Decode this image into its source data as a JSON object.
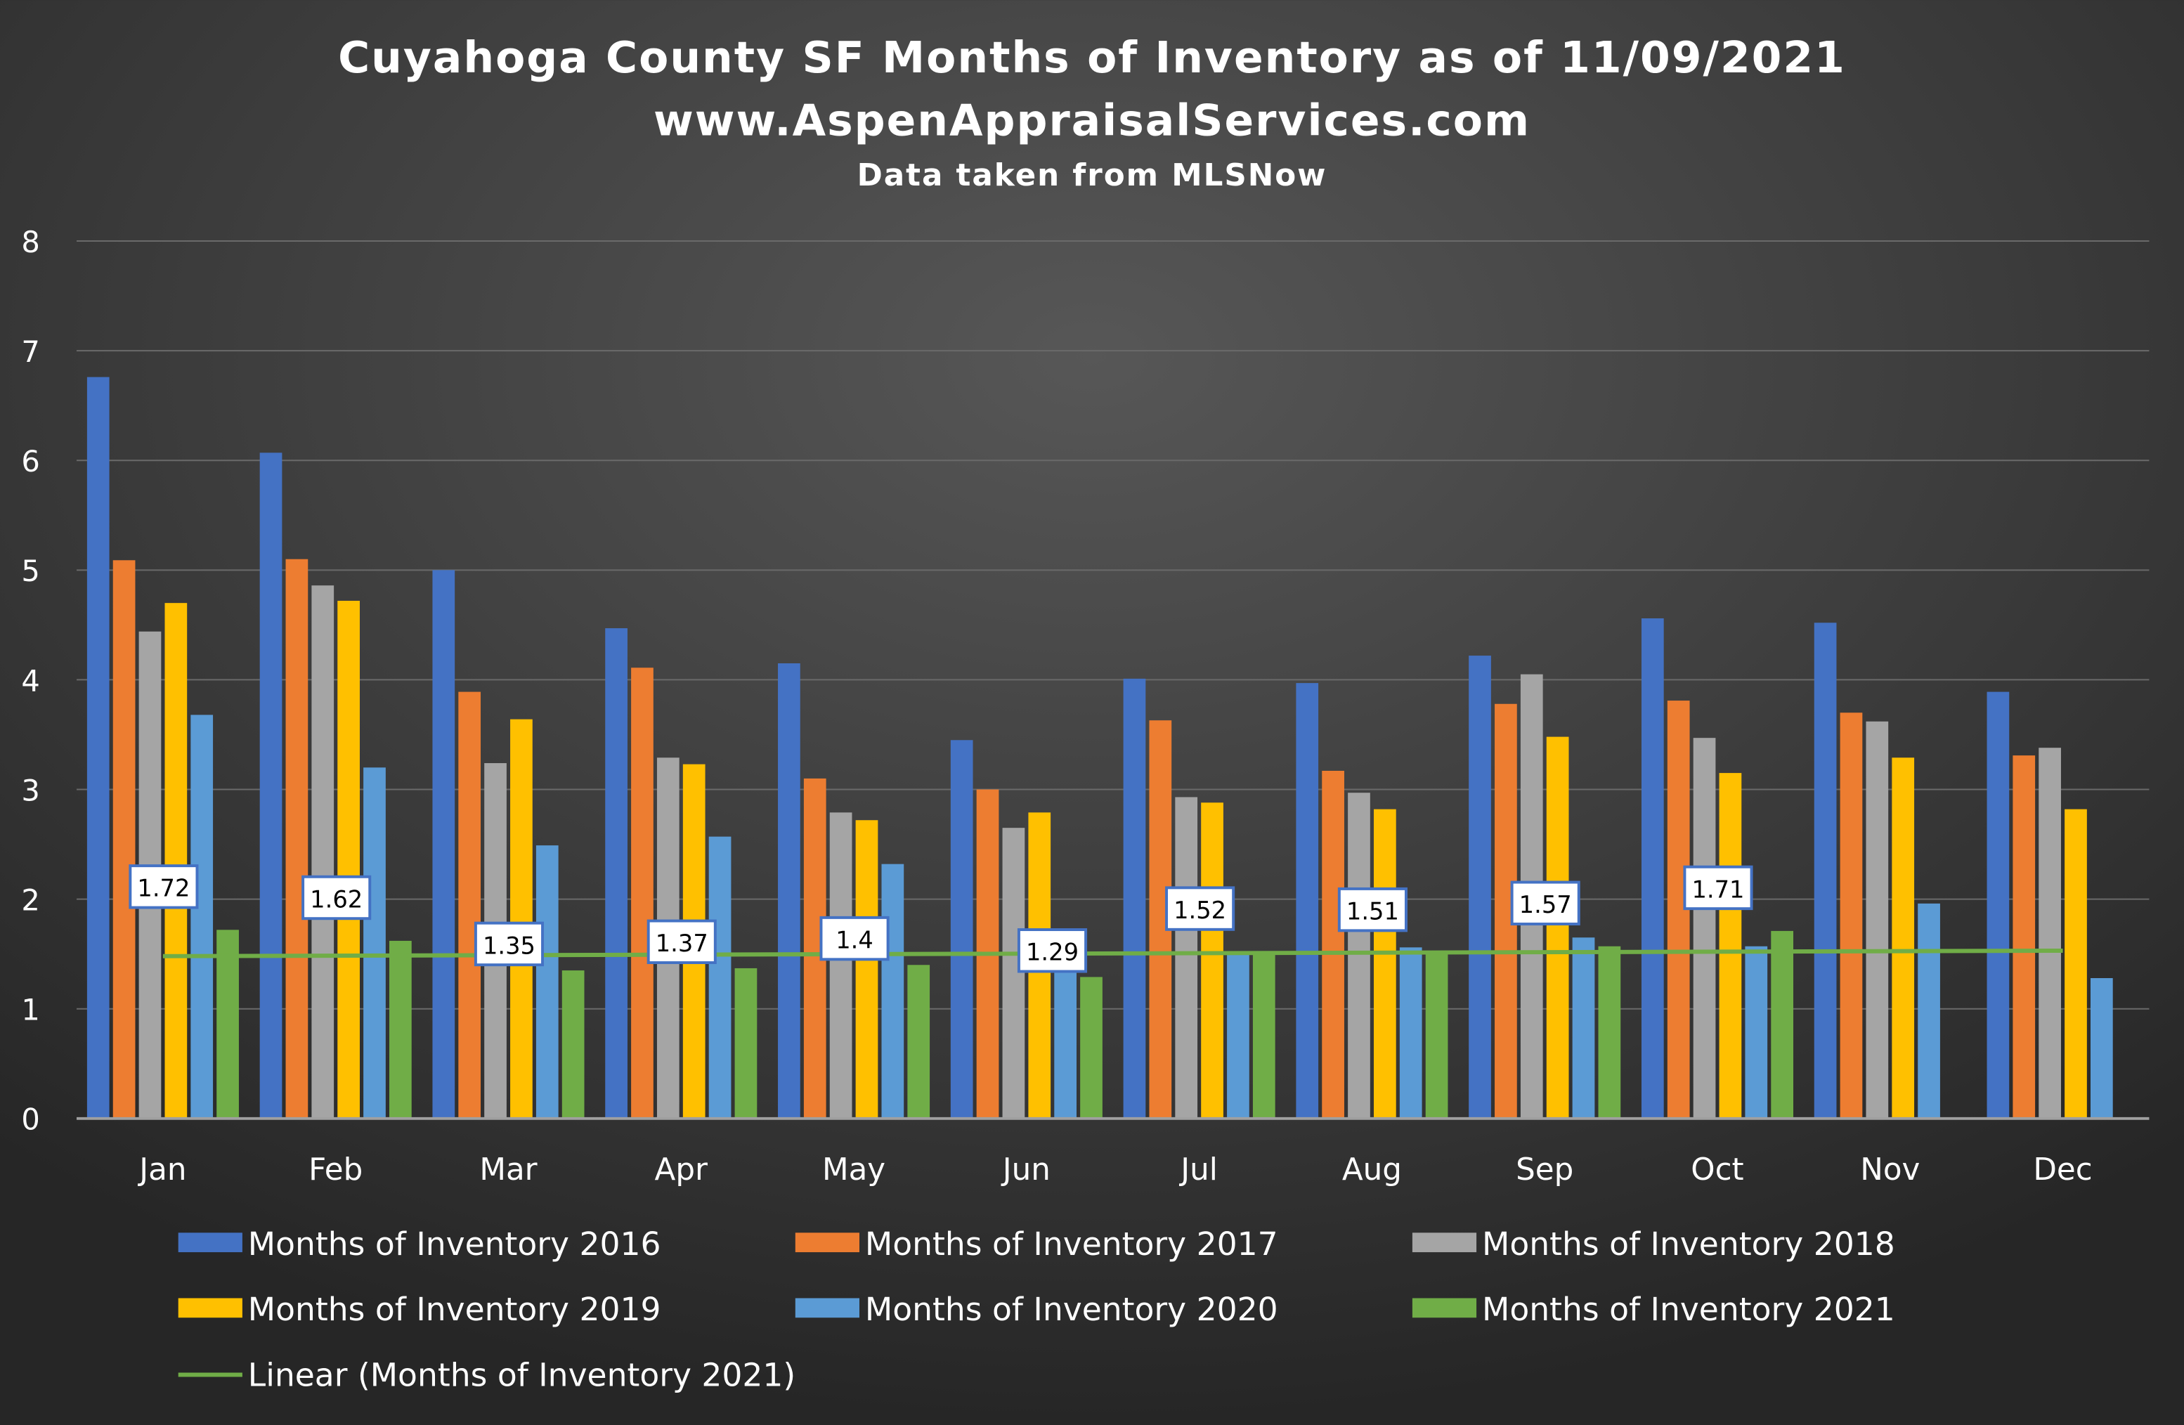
{
  "chart_data": {
    "type": "bar",
    "title": "Cuyahoga County SF Months of Inventory as of 11/09/2021",
    "subtitle": "www.AspenAppraisalServices.com",
    "subtitle2": "Data taken from MLSNow",
    "xlabel": "",
    "ylabel": "",
    "ylim": [
      0,
      8
    ],
    "yticks": [
      "0",
      "1",
      "2",
      "3",
      "4",
      "5",
      "6",
      "7",
      "8"
    ],
    "grid": true,
    "legend_position": "bottom",
    "categories": [
      "Jan",
      "Feb",
      "Mar",
      "Apr",
      "May",
      "Jun",
      "Jul",
      "Aug",
      "Sep",
      "Oct",
      "Nov",
      "Dec"
    ],
    "series": [
      {
        "name": "Months of Inventory 2016",
        "color": "#4472c4",
        "values": [
          6.76,
          6.07,
          5.0,
          4.47,
          4.15,
          3.45,
          4.01,
          3.97,
          4.22,
          4.56,
          4.52,
          3.89
        ]
      },
      {
        "name": "Months of Inventory 2017",
        "color": "#ed7d31",
        "values": [
          5.09,
          5.1,
          3.89,
          4.11,
          3.1,
          3.0,
          3.63,
          3.17,
          3.78,
          3.81,
          3.7,
          3.31
        ]
      },
      {
        "name": "Months of Inventory 2018",
        "color": "#a5a5a5",
        "values": [
          4.44,
          4.86,
          3.24,
          3.29,
          2.79,
          2.65,
          2.93,
          2.97,
          4.05,
          3.47,
          3.62,
          3.38
        ]
      },
      {
        "name": "Months of Inventory 2019",
        "color": "#ffc000",
        "values": [
          4.7,
          4.72,
          3.64,
          3.23,
          2.72,
          2.79,
          2.88,
          2.82,
          3.48,
          3.15,
          3.29,
          2.82
        ]
      },
      {
        "name": "Months of Inventory 2020",
        "color": "#5b9bd5",
        "values": [
          3.68,
          3.2,
          2.49,
          2.57,
          2.32,
          1.4,
          1.52,
          1.56,
          1.65,
          1.57,
          1.96,
          1.28
        ]
      },
      {
        "name": "Months of Inventory 2021",
        "color": "#70ad47",
        "values": [
          1.72,
          1.62,
          1.35,
          1.37,
          1.4,
          1.29,
          1.52,
          1.51,
          1.57,
          1.71,
          null,
          null
        ],
        "data_labels": [
          "1.72",
          "1.62",
          "1.35",
          "1.37",
          "1.4",
          "1.29",
          "1.52",
          "1.51",
          "1.57",
          "1.71"
        ]
      }
    ],
    "trendline": {
      "name": "Linear (Months of Inventory 2021)",
      "color": "#70ad47",
      "start": 1.48,
      "end": 1.53
    }
  }
}
